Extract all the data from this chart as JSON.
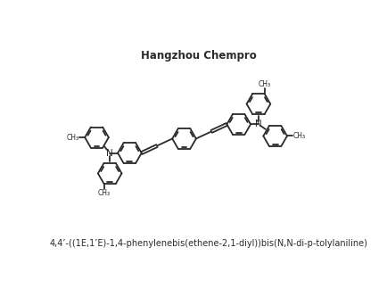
{
  "title": "Hangzhou Chempro",
  "caption": "4,4’-((1E,1’E)-1,4-phenylenebis(ethene-2,1-diyl))bis(N,N-di-p-tolylaniline)",
  "bg_color": "#ffffff",
  "bond_color": "#2a2a2a",
  "bond_lw": 1.3,
  "title_fontsize": 8.5,
  "caption_fontsize": 7.0,
  "N_fontsize": 7.5,
  "xlim": [
    -4.8,
    5.8
  ],
  "ylim": [
    -3.6,
    3.8
  ]
}
